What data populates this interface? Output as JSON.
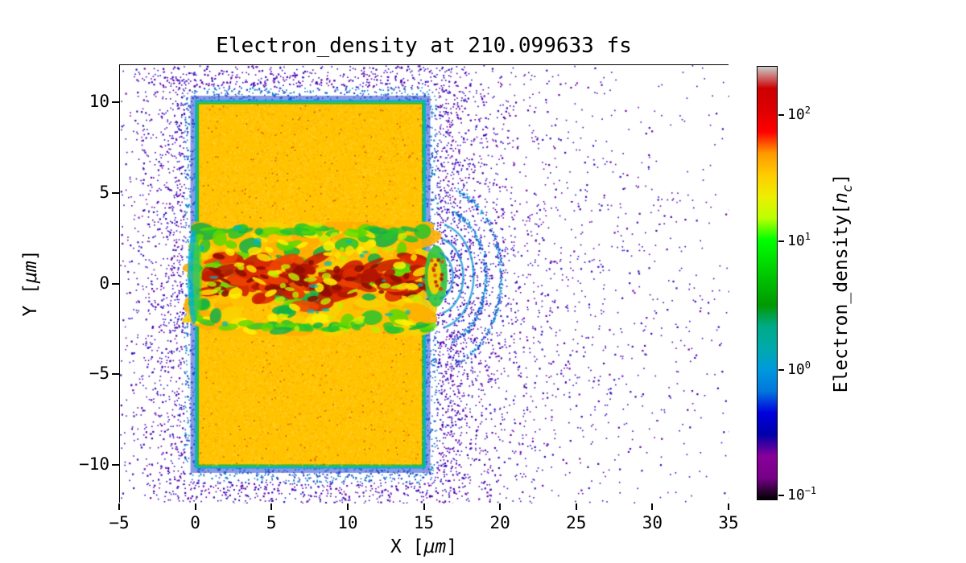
{
  "figure": {
    "background": "#ffffff"
  },
  "chart_data": {
    "type": "heatmap",
    "title": "Electron_density at 210.099633 fs",
    "time_fs": 210.099633,
    "xlabel_prefix": "X [",
    "xlabel_unit": "μm",
    "xlabel_suffix": "]",
    "ylabel_prefix": "Y [",
    "ylabel_unit": "μm",
    "ylabel_suffix": "]",
    "x_range": [
      -5,
      35
    ],
    "y_range": [
      -12.1,
      12.1
    ],
    "x_ticks": [
      {
        "value": -5,
        "label": "−5"
      },
      {
        "value": 0,
        "label": "0"
      },
      {
        "value": 5,
        "label": "5"
      },
      {
        "value": 10,
        "label": "10"
      },
      {
        "value": 15,
        "label": "15"
      },
      {
        "value": 20,
        "label": "20"
      },
      {
        "value": 25,
        "label": "25"
      },
      {
        "value": 30,
        "label": "30"
      },
      {
        "value": 35,
        "label": "35"
      }
    ],
    "y_ticks": [
      {
        "value": -10,
        "label": "−10"
      },
      {
        "value": -5,
        "label": "−5"
      },
      {
        "value": 0,
        "label": "0"
      },
      {
        "value": 5,
        "label": "5"
      },
      {
        "value": 10,
        "label": "10"
      }
    ],
    "colorbar": {
      "label_prefix": "Electron_density[",
      "label_nc_base": "n",
      "label_nc_sub": "c",
      "label_suffix": "]",
      "scale": "log",
      "colormap": "nipy_spectral",
      "ticks": [
        {
          "base": "10",
          "exp": "−1",
          "norm": 0.012
        },
        {
          "base": "10",
          "exp": "0",
          "norm": 0.3
        },
        {
          "base": "10",
          "exp": "1",
          "norm": 0.596
        },
        {
          "base": "10",
          "exp": "2",
          "norm": 0.887
        }
      ],
      "stops": [
        [
          0.0,
          "#000000"
        ],
        [
          0.05,
          "#770088"
        ],
        [
          0.1,
          "#880099"
        ],
        [
          0.15,
          "#0000aa"
        ],
        [
          0.2,
          "#0000dd"
        ],
        [
          0.25,
          "#0077dd"
        ],
        [
          0.3,
          "#0099dd"
        ],
        [
          0.35,
          "#00aaaa"
        ],
        [
          0.4,
          "#00aa88"
        ],
        [
          0.45,
          "#009900"
        ],
        [
          0.5,
          "#00bb00"
        ],
        [
          0.55,
          "#00dd00"
        ],
        [
          0.6,
          "#00ff00"
        ],
        [
          0.65,
          "#bbff00"
        ],
        [
          0.7,
          "#eeee00"
        ],
        [
          0.75,
          "#ffcc00"
        ],
        [
          0.8,
          "#ff9900"
        ],
        [
          0.85,
          "#ff0000"
        ],
        [
          0.9,
          "#dd0000"
        ],
        [
          0.95,
          "#cc0000"
        ],
        [
          1.0,
          "#cccccc"
        ]
      ]
    },
    "features": {
      "slab": {
        "x": [
          0,
          15.0
        ],
        "y": [
          -10.1,
          10.1
        ],
        "color": "#ffc400",
        "texture_colors": [
          "#ffb000",
          "#ffd540",
          "#f07800"
        ],
        "edge_teal": "#00b4c8",
        "edge_green": "#2fb52f",
        "edge_blue": "#2a44d0",
        "approx_density_nc": 30
      },
      "channel": {
        "x": [
          0,
          15.0
        ],
        "y": [
          -2.6,
          3.3
        ],
        "base_colors": [
          "#ffc000",
          "#ffae00",
          "#f8d200"
        ],
        "red_colors": [
          "#dd2a00",
          "#c81e00",
          "#ef4400",
          "#b01500"
        ],
        "core_color": "#8f0d00",
        "bright_colors": [
          "#ffe000",
          "#fff200"
        ],
        "green_colors": [
          "#27c42c",
          "#0fb048",
          "#5dd800"
        ],
        "lime_color": "#c2ee00",
        "cyan_color": "#00b6c0",
        "approx_density_nc_max": 200
      },
      "plume": {
        "center": [
          15.75,
          0.45
        ],
        "green": "#2cc23c",
        "yellow": "#ffd000",
        "cyan": "#0b96d8",
        "arc_radii_um": [
          1.3,
          2.1,
          2.9,
          3.8,
          5.0
        ]
      },
      "halo": {
        "colors_far": [
          "#2a10c8",
          "#6a00a8",
          "#3f00b0",
          "#9400d3"
        ],
        "colors_near": [
          "#0b86d0",
          "#2244cc"
        ],
        "approx_density_nc": 0.2
      }
    }
  }
}
